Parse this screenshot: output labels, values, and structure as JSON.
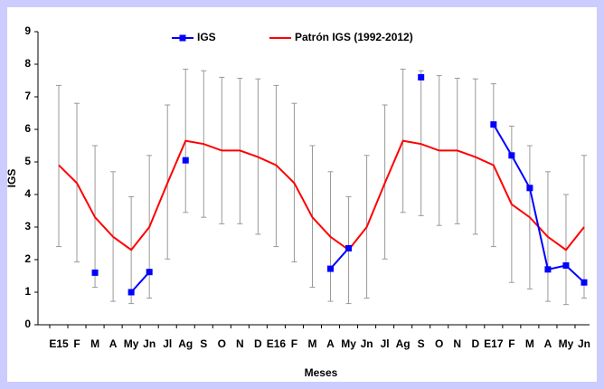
{
  "chart_data": {
    "type": "line",
    "y_label": "IGS",
    "x_label": "Meses",
    "categories": [
      "E15",
      "F",
      "M",
      "A",
      "My",
      "Jn",
      "Jl",
      "Ag",
      "S",
      "O",
      "N",
      "D",
      "E16",
      "F",
      "M",
      "A",
      "My",
      "Jn",
      "Jl",
      "Ag",
      "S",
      "O",
      "N",
      "D",
      "E17",
      "F",
      "M",
      "A",
      "My",
      "Jn"
    ],
    "ylim": [
      0,
      9
    ],
    "yticks": [
      0,
      1,
      2,
      3,
      4,
      5,
      6,
      7,
      8,
      9
    ],
    "series": [
      {
        "name": "IGS",
        "color": "#0000ff",
        "values": [
          null,
          null,
          1.6,
          null,
          1.0,
          1.62,
          null,
          5.05,
          null,
          null,
          null,
          null,
          null,
          null,
          null,
          1.72,
          2.35,
          null,
          null,
          null,
          7.6,
          null,
          null,
          null,
          6.15,
          5.2,
          4.2,
          1.7,
          1.82,
          1.3
        ]
      },
      {
        "name": "Patrón IGS (1992-2012)",
        "color": "#ff0000",
        "error_color": "#999999",
        "values": [
          4.9,
          4.35,
          3.3,
          2.7,
          2.3,
          3.0,
          4.35,
          5.65,
          5.55,
          5.35,
          5.35,
          5.15,
          4.9,
          4.35,
          3.3,
          2.7,
          2.3,
          3.0,
          4.35,
          5.65,
          5.55,
          5.35,
          5.35,
          5.15,
          4.9,
          3.7,
          3.3,
          2.7,
          2.3,
          3.0
        ],
        "low": [
          2.4,
          1.93,
          1.15,
          0.72,
          0.65,
          0.82,
          2.02,
          3.45,
          3.3,
          3.1,
          3.1,
          2.78,
          2.4,
          1.93,
          1.15,
          0.72,
          0.65,
          0.82,
          2.02,
          3.45,
          3.35,
          3.05,
          3.1,
          2.78,
          2.4,
          1.3,
          1.1,
          0.72,
          0.62,
          0.82
        ],
        "high": [
          7.35,
          6.8,
          5.5,
          4.7,
          3.93,
          5.2,
          6.75,
          7.85,
          7.8,
          7.6,
          7.57,
          7.55,
          7.35,
          6.8,
          5.5,
          4.7,
          3.93,
          5.2,
          6.75,
          7.85,
          7.8,
          7.65,
          7.57,
          7.55,
          7.4,
          6.1,
          5.5,
          4.7,
          4.0,
          5.2
        ]
      }
    ]
  }
}
